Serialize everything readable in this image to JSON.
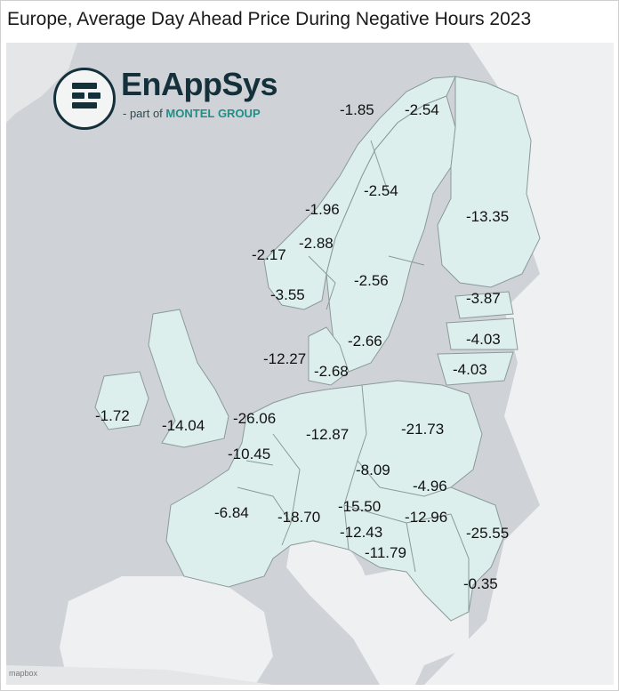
{
  "title": "Europe, Average Day Ahead Price During Negative Hours 2023",
  "logo": {
    "name": "EnAppSys",
    "tag_prefix": "- part of",
    "tag_brand": "MONTEL",
    "tag_suffix": "GROUP"
  },
  "attribution": "mapbox",
  "colors": {
    "ocean": "#cfd2d6",
    "highlighted_land": "#dcefed",
    "other_land": "#eef0f1",
    "border": "#8a9a9a"
  },
  "prices": [
    {
      "zone": "NO4",
      "label": "-1.85"
    },
    {
      "zone": "SE1",
      "label": "-2.54"
    },
    {
      "zone": "SE2",
      "label": "-2.54"
    },
    {
      "zone": "NO3",
      "label": "-1.96"
    },
    {
      "zone": "FI",
      "label": "-13.35"
    },
    {
      "zone": "NO1",
      "label": "-2.88"
    },
    {
      "zone": "NO5",
      "label": "-2.17"
    },
    {
      "zone": "SE3",
      "label": "-2.56"
    },
    {
      "zone": "NO2",
      "label": "-3.55"
    },
    {
      "zone": "EE",
      "label": "-3.87"
    },
    {
      "zone": "SE4",
      "label": "-2.66"
    },
    {
      "zone": "LV",
      "label": "-4.03"
    },
    {
      "zone": "DK1",
      "label": "-12.27"
    },
    {
      "zone": "DK2",
      "label": "-2.68"
    },
    {
      "zone": "LT",
      "label": "-4.03"
    },
    {
      "zone": "IE",
      "label": "-1.72"
    },
    {
      "zone": "GB",
      "label": "-14.04"
    },
    {
      "zone": "NL",
      "label": "-26.06"
    },
    {
      "zone": "DE",
      "label": "-12.87"
    },
    {
      "zone": "PL",
      "label": "-21.73"
    },
    {
      "zone": "BE",
      "label": "-10.45"
    },
    {
      "zone": "CZ",
      "label": "-8.09"
    },
    {
      "zone": "SK",
      "label": "-4.96"
    },
    {
      "zone": "FR",
      "label": "-6.84"
    },
    {
      "zone": "CH",
      "label": "-18.70"
    },
    {
      "zone": "AT",
      "label": "-15.50"
    },
    {
      "zone": "HU",
      "label": "-12.96"
    },
    {
      "zone": "RO",
      "label": "-25.55"
    },
    {
      "zone": "SI",
      "label": "-12.43"
    },
    {
      "zone": "HR",
      "label": "-11.79"
    },
    {
      "zone": "BG",
      "label": "-0.35"
    }
  ]
}
